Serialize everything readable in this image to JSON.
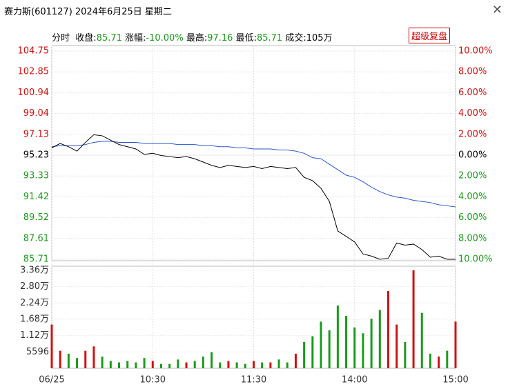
{
  "header": {
    "title": "赛力斯(601127) 2024年6月25日 星期二"
  },
  "info": {
    "mode": "分时",
    "items": [
      {
        "label": "收盘:",
        "value": "85.71"
      },
      {
        "label": "涨幅:",
        "value": "-10.00%"
      },
      {
        "label": "最高:",
        "value": "97.16"
      },
      {
        "label": "最低:",
        "value": "85.71"
      },
      {
        "label": "成交:",
        "value": "105万"
      }
    ],
    "replay_button": "超级复盘"
  },
  "chart_data": [
    {
      "type": "line",
      "x": [
        0,
        5,
        10,
        15,
        20,
        25,
        30,
        35,
        40,
        45,
        50,
        55,
        60,
        65,
        70,
        75,
        80,
        85,
        90,
        95,
        100,
        105,
        110,
        115,
        120,
        125,
        130,
        135,
        140,
        145,
        150,
        155,
        160,
        165,
        170,
        175,
        180,
        185,
        190,
        195,
        200,
        205,
        210,
        215,
        220,
        225,
        230,
        235,
        240
      ],
      "xlim": [
        0,
        240
      ],
      "series": [
        {
          "color": "#000000",
          "values": [
            95.9,
            96.3,
            96.0,
            95.6,
            96.4,
            97.1,
            97.0,
            96.6,
            96.2,
            96.0,
            95.8,
            95.3,
            95.4,
            95.2,
            95.1,
            95.0,
            95.1,
            94.9,
            94.6,
            94.3,
            94.1,
            94.3,
            94.2,
            94.1,
            94.2,
            94.0,
            94.2,
            94.1,
            94.0,
            94.1,
            93.2,
            92.9,
            92.2,
            91.0,
            88.3,
            87.8,
            87.3,
            86.2,
            86.0,
            85.71,
            85.8,
            87.2,
            87.0,
            87.1,
            86.6,
            85.9,
            86.0,
            85.71,
            85.71
          ]
        },
        {
          "color": "#2a55c8",
          "values": [
            96.0,
            96.1,
            96.1,
            96.1,
            96.2,
            96.4,
            96.5,
            96.5,
            96.4,
            96.4,
            96.4,
            96.3,
            96.3,
            96.3,
            96.3,
            96.2,
            96.2,
            96.2,
            96.1,
            96.1,
            96.0,
            96.0,
            95.9,
            95.9,
            95.8,
            95.8,
            95.8,
            95.7,
            95.7,
            95.6,
            95.4,
            95.0,
            94.9,
            94.4,
            93.9,
            93.4,
            93.2,
            92.8,
            92.3,
            91.9,
            91.6,
            91.4,
            91.3,
            91.1,
            91.0,
            90.9,
            90.7,
            90.6,
            90.5
          ]
        }
      ],
      "ylim": [
        85.71,
        104.75
      ],
      "yticks": [
        104.75,
        102.85,
        100.94,
        99.04,
        97.13,
        95.23,
        93.33,
        91.42,
        89.52,
        87.61,
        85.71
      ],
      "y2lim": [
        -10,
        10
      ],
      "y2ticks": [
        {
          "value": 10,
          "label": "10.00%"
        },
        {
          "value": 8,
          "label": "8.00%"
        },
        {
          "value": 6,
          "label": "6.00%"
        },
        {
          "value": 4,
          "label": "4.00%"
        },
        {
          "value": 2,
          "label": "2.00%"
        },
        {
          "value": 0,
          "label": "0.00%"
        },
        {
          "value": -2,
          "label": "2.00%"
        },
        {
          "value": -4,
          "label": "4.00%"
        },
        {
          "value": -6,
          "label": "6.00%"
        },
        {
          "value": -8,
          "label": "8.00%"
        },
        {
          "value": -10,
          "label": "10.00%"
        }
      ],
      "up_color": "#d01010",
      "down_color": "#1a9a1a",
      "flat_color": "#000000"
    },
    {
      "type": "bar",
      "x": [
        0,
        5,
        10,
        15,
        20,
        25,
        30,
        35,
        40,
        45,
        50,
        55,
        60,
        65,
        70,
        75,
        80,
        85,
        90,
        95,
        100,
        105,
        110,
        115,
        120,
        125,
        130,
        135,
        140,
        145,
        150,
        155,
        160,
        165,
        170,
        175,
        180,
        185,
        190,
        195,
        200,
        205,
        210,
        215,
        220,
        225,
        230,
        235,
        240
      ],
      "xlim": [
        0,
        240
      ],
      "values": [
        15000,
        6000,
        5000,
        3500,
        6000,
        7500,
        4000,
        2500,
        2000,
        2500,
        2000,
        3500,
        2500,
        1500,
        1500,
        3000,
        2000,
        2500,
        4000,
        5500,
        2000,
        2500,
        2000,
        1500,
        2500,
        2000,
        2000,
        3000,
        2000,
        5000,
        9000,
        11000,
        16000,
        13000,
        21500,
        18000,
        14000,
        12000,
        17000,
        20000,
        26500,
        15000,
        9000,
        33600,
        19000,
        5000,
        4000,
        6000,
        16000
      ],
      "ylim": [
        0,
        33600
      ],
      "yticks": [
        5596,
        {
          "value": 11200,
          "label": "1.12万"
        },
        {
          "value": 16800,
          "label": "1.68万"
        },
        {
          "value": 22400,
          "label": "2.24万"
        },
        {
          "value": 28000,
          "label": "2.80万"
        },
        {
          "value": 33600,
          "label": "3.36万"
        }
      ],
      "xticks": [
        {
          "value": 0,
          "label": "06/25"
        },
        {
          "value": 60,
          "label": "10:30"
        },
        {
          "value": 120,
          "label": "11:30"
        },
        {
          "value": 180,
          "label": "14:00"
        },
        {
          "value": 240,
          "label": "15:00"
        }
      ],
      "up_color": "#d01010",
      "down_color": "#1a9a1a"
    }
  ]
}
